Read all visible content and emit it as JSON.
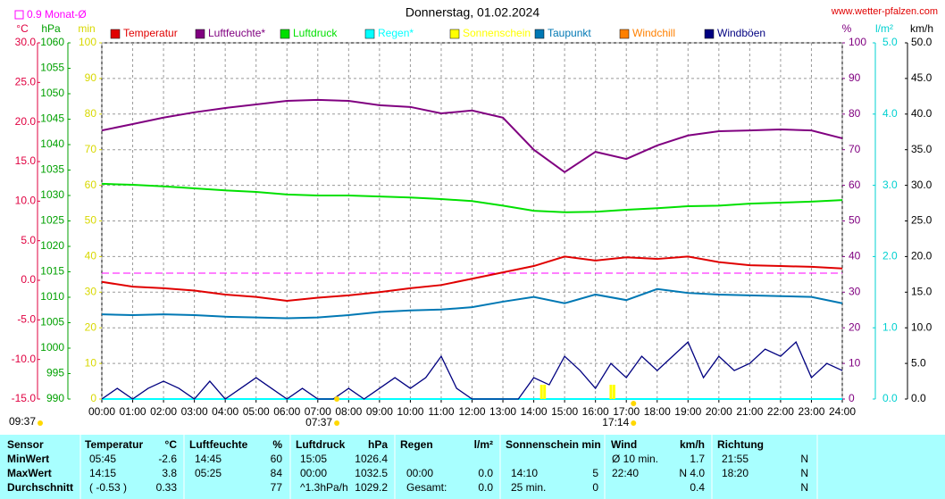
{
  "chart_data": {
    "type": "line",
    "title": "Donnerstag, 01.02.2024",
    "source": "www.wetter-pfalzen.com",
    "updated": "09:37",
    "reference": {
      "label": "0.9 Monat-Ø",
      "value": 0.9,
      "axis": 0,
      "color": "#ff00ff"
    },
    "sunrise": {
      "label": "07:37",
      "x": 7.617
    },
    "sunset": {
      "label": "17:14",
      "x": 17.233
    },
    "grid": true,
    "xlim": [
      0,
      24
    ],
    "xticks": [
      {
        "value": 0,
        "label": "00:00"
      },
      {
        "value": 1,
        "label": "01:00"
      },
      {
        "value": 2,
        "label": "02:00"
      },
      {
        "value": 3,
        "label": "03:00"
      },
      {
        "value": 4,
        "label": "04:00"
      },
      {
        "value": 5,
        "label": "05:00"
      },
      {
        "value": 6,
        "label": "06:00"
      },
      {
        "value": 7,
        "label": "07:00"
      },
      {
        "value": 8,
        "label": "08:00"
      },
      {
        "value": 9,
        "label": "09:00"
      },
      {
        "value": 10,
        "label": "10:00"
      },
      {
        "value": 11,
        "label": "11:00"
      },
      {
        "value": 12,
        "label": "12:00"
      },
      {
        "value": 13,
        "label": "13:00"
      },
      {
        "value": 14,
        "label": "14:00"
      },
      {
        "value": 15,
        "label": "15:00"
      },
      {
        "value": 16,
        "label": "16:00"
      },
      {
        "value": 17,
        "label": "17:00"
      },
      {
        "value": 18,
        "label": "18:00"
      },
      {
        "value": 19,
        "label": "19:00"
      },
      {
        "value": 20,
        "label": "20:00"
      },
      {
        "value": 21,
        "label": "21:00"
      },
      {
        "value": 22,
        "label": "22:00"
      },
      {
        "value": 23,
        "label": "23:00"
      },
      {
        "value": 24,
        "label": "24:00"
      }
    ],
    "axes": [
      {
        "label": "°C",
        "color": "#e00040",
        "lim": [
          -15,
          30
        ],
        "ticks": [
          {
            "value": -15,
            "label": "-15.0"
          },
          {
            "value": -10,
            "label": "-10.0"
          },
          {
            "value": -5,
            "label": "-5.0"
          },
          {
            "value": 0,
            "label": "0.0"
          },
          {
            "value": 5,
            "label": "5.0"
          },
          {
            "value": 10,
            "label": "10.0"
          },
          {
            "value": 15,
            "label": "15.0"
          },
          {
            "value": 20,
            "label": "20.0"
          },
          {
            "value": 25,
            "label": "25.0"
          },
          {
            "value": 30,
            "label": "30.0"
          }
        ]
      },
      {
        "label": "hPa",
        "color": "#00a000",
        "lim": [
          990,
          1060
        ],
        "ticks": [
          990,
          995,
          1000,
          1005,
          1010,
          1015,
          1020,
          1025,
          1030,
          1035,
          1040,
          1045,
          1050,
          1055,
          1060
        ]
      },
      {
        "label": "min",
        "color": "#d8d800",
        "lim": [
          0,
          100
        ],
        "ticks": [
          0,
          10,
          20,
          30,
          40,
          50,
          60,
          70,
          80,
          90,
          100
        ]
      },
      {
        "label": "%",
        "color": "#800080",
        "lim": [
          0,
          100
        ],
        "ticks": [
          0,
          10,
          20,
          30,
          40,
          50,
          60,
          70,
          80,
          90,
          100
        ]
      },
      {
        "label": "l/m²",
        "color": "#00d0d0",
        "lim": [
          0,
          5
        ],
        "ticks": [
          {
            "value": 0,
            "label": "0.0"
          },
          {
            "value": 1,
            "label": "1.0"
          },
          {
            "value": 2,
            "label": "2.0"
          },
          {
            "value": 3,
            "label": "3.0"
          },
          {
            "value": 4,
            "label": "4.0"
          },
          {
            "value": 5,
            "label": "5.0"
          }
        ]
      },
      {
        "label": "km/h",
        "color": "#000000",
        "lim": [
          0,
          50
        ],
        "ticks": [
          {
            "value": 0,
            "label": "0.0"
          },
          {
            "value": 5,
            "label": "5.0"
          },
          {
            "value": 10,
            "label": "10.0"
          },
          {
            "value": 15,
            "label": "15.0"
          },
          {
            "value": 20,
            "label": "20.0"
          },
          {
            "value": 25,
            "label": "25.0"
          },
          {
            "value": 30,
            "label": "30.0"
          },
          {
            "value": 35,
            "label": "35.0"
          },
          {
            "value": 40,
            "label": "40.0"
          },
          {
            "value": 45,
            "label": "45.0"
          },
          {
            "value": 50,
            "label": "50.0"
          }
        ]
      }
    ],
    "series": [
      {
        "name": "Temperatur",
        "color": "#e00000",
        "axis": 0,
        "kind": "line",
        "x": [
          0,
          1,
          2,
          3,
          4,
          5,
          6,
          7,
          8,
          9,
          10,
          11,
          12,
          13,
          14,
          15,
          16,
          17,
          18,
          19,
          20,
          21,
          22,
          23,
          24
        ],
        "values": [
          -0.2,
          -0.8,
          -1.0,
          -1.3,
          -1.8,
          -2.1,
          -2.6,
          -2.2,
          -1.9,
          -1.5,
          -1.0,
          -0.6,
          0.2,
          1.0,
          1.8,
          3.0,
          2.5,
          2.9,
          2.7,
          3.0,
          2.3,
          1.9,
          1.8,
          1.7,
          1.5
        ]
      },
      {
        "name": "Luftfeuchte*",
        "color": "#800080",
        "axis": 3,
        "kind": "line",
        "x": [
          0,
          1,
          2,
          3,
          4,
          5,
          6,
          7,
          8,
          9,
          10,
          11,
          12,
          13,
          14,
          15,
          16,
          17,
          18,
          19,
          20,
          21,
          22,
          23,
          24
        ],
        "values": [
          75.4,
          77.2,
          79,
          80.5,
          81.7,
          82.7,
          83.7,
          84,
          83.7,
          82.5,
          82,
          80.2,
          81,
          79,
          70,
          63.7,
          69.4,
          67.4,
          71.2,
          74,
          75.2,
          75.4,
          75.7,
          75.4,
          73.2
        ]
      },
      {
        "name": "Luftdruck",
        "color": "#00e000",
        "axis": 1,
        "kind": "line",
        "x": [
          0,
          1,
          2,
          3,
          4,
          5,
          6,
          7,
          8,
          9,
          10,
          11,
          12,
          13,
          14,
          15,
          16,
          17,
          18,
          19,
          20,
          21,
          22,
          23,
          24
        ],
        "values": [
          1032.3,
          1032.1,
          1031.8,
          1031.4,
          1031,
          1030.7,
          1030.2,
          1030,
          1030,
          1029.8,
          1029.6,
          1029.3,
          1028.9,
          1028,
          1027,
          1026.7,
          1026.8,
          1027.2,
          1027.5,
          1027.9,
          1028,
          1028.4,
          1028.6,
          1028.8,
          1029.1
        ]
      },
      {
        "name": "Regen*",
        "color": "#00ffff",
        "axis": 4,
        "kind": "line",
        "x": [
          0,
          24
        ],
        "values": [
          0,
          0
        ]
      },
      {
        "name": "Sonnenschein",
        "color": "#ffff00",
        "axis": 2,
        "kind": "bar",
        "x": [
          14.25,
          14.35,
          16.5,
          16.6
        ],
        "values": [
          4,
          4,
          4,
          4
        ]
      },
      {
        "name": "Taupunkt",
        "color": "#0078b4",
        "axis": 0,
        "kind": "line",
        "x": [
          0,
          1,
          2,
          3,
          4,
          5,
          6,
          7,
          8,
          9,
          10,
          11,
          12,
          13,
          14,
          15,
          16,
          17,
          18,
          19,
          20,
          21,
          22,
          23,
          24
        ],
        "values": [
          -4.3,
          -4.4,
          -4.3,
          -4.4,
          -4.6,
          -4.7,
          -4.8,
          -4.7,
          -4.4,
          -4.0,
          -3.8,
          -3.7,
          -3.4,
          -2.7,
          -2.1,
          -2.9,
          -1.8,
          -2.5,
          -1.1,
          -1.6,
          -1.8,
          -1.9,
          -2.0,
          -2.1,
          -2.9
        ]
      },
      {
        "name": "Windchill",
        "color": "#ff8000",
        "axis": 0,
        "kind": "line"
      },
      {
        "name": "Windböen",
        "color": "#000080",
        "axis": 5,
        "kind": "line",
        "x": [
          0,
          0.5,
          1,
          1.5,
          2,
          2.5,
          3,
          3.5,
          4,
          4.5,
          5,
          5.5,
          6,
          6.5,
          7,
          7.5,
          8,
          8.5,
          9,
          9.5,
          10,
          10.5,
          11,
          11.5,
          12,
          12.5,
          13,
          13.5,
          14,
          14.5,
          15,
          15.5,
          16,
          16.5,
          17,
          17.5,
          18,
          18.5,
          19,
          19.5,
          20,
          20.5,
          21,
          21.5,
          22,
          22.5,
          23,
          23.5,
          24
        ],
        "values": [
          0,
          1.5,
          0,
          1.5,
          2.5,
          1.5,
          0,
          2.5,
          0,
          1.5,
          3,
          1.5,
          0,
          1.5,
          0,
          0,
          1.5,
          0,
          1.5,
          3,
          1.5,
          3,
          6,
          1.5,
          0,
          0,
          0,
          0,
          3,
          2,
          6,
          4,
          1.5,
          5,
          3,
          6,
          4,
          6,
          8,
          3,
          6,
          4,
          5,
          7,
          6,
          8,
          3,
          5,
          4
        ]
      }
    ]
  },
  "table": {
    "header": [
      "Sensor",
      "Temperatur",
      "°C",
      "Luftfeuchte",
      "%",
      "Luftdruck",
      "hPa",
      "Regen",
      "l/m²",
      "Sonnenschein min",
      "Wind",
      "km/h",
      "Richtung"
    ],
    "rows": [
      [
        "MinWert",
        "05:45",
        "-2.6",
        "14:45",
        "60",
        "15:05",
        "1026.4",
        null,
        null,
        null,
        null,
        "Ø 10 min.",
        "1.7",
        "21:55",
        "N"
      ],
      [
        "MaxWert",
        "14:15",
        "3.8",
        "05:25",
        "84",
        "00:00",
        "1032.5",
        "00:00",
        "0.0",
        "14:10",
        "5",
        "22:40",
        "N 4.0",
        "18:20",
        "N"
      ],
      [
        "Durchschnitt",
        "( -0.53 )",
        "0.33",
        null,
        "77",
        "^1.3hPa/h",
        "1029.2",
        "Gesamt:",
        "0.0",
        "25 min.",
        "0",
        null,
        "0.4",
        null,
        "N"
      ]
    ]
  }
}
